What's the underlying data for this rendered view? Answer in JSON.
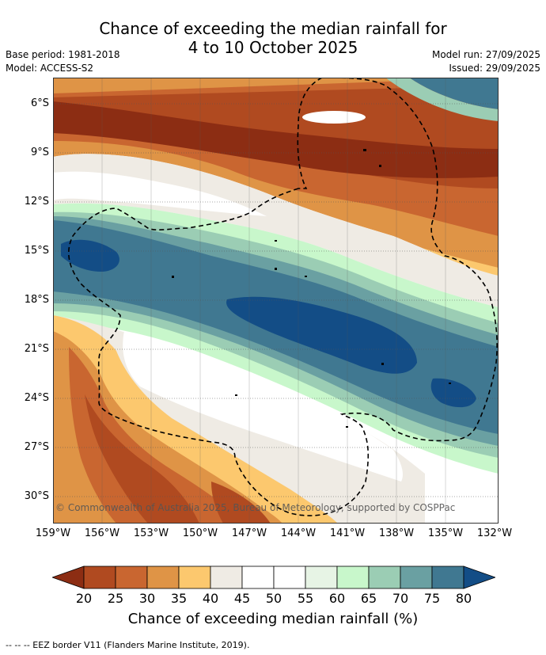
{
  "header": {
    "title_line1": "Chance of exceeding the median rainfall for",
    "title_line2": "4 to 10 October 2025",
    "base_period": "Base period: 1981-2018",
    "model": "Model: ACCESS-S2",
    "model_run": "Model run: 27/09/2025",
    "issued": "Issued: 29/09/2025"
  },
  "map": {
    "lat_labels": [
      "6°S",
      "9°S",
      "12°S",
      "15°S",
      "18°S",
      "21°S",
      "24°S",
      "27°S",
      "30°S"
    ],
    "lon_labels": [
      "159°W",
      "156°W",
      "153°W",
      "150°W",
      "147°W",
      "144°W",
      "141°W",
      "138°W",
      "135°W",
      "132°W"
    ],
    "copyright": "© Commonwealth of Australia 2025, Bureau of Meteorology, supported by COSPPac"
  },
  "colorbar": {
    "ticks": [
      "20",
      "25",
      "30",
      "35",
      "40",
      "45",
      "50",
      "55",
      "60",
      "65",
      "70",
      "75",
      "80"
    ],
    "colors": [
      "#8c2d13",
      "#b04a20",
      "#c96630",
      "#df9446",
      "#fcc86e",
      "#efebe4",
      "#ffffff",
      "#ffffff",
      "#e7f4e5",
      "#c8f7cb",
      "#9bcdb4",
      "#6aa0a2",
      "#407891",
      "#134d86"
    ],
    "title": "Chance of exceeding median rainfall (%)"
  },
  "footnote": "--  --  -- EEZ border V11 (Flanders Marine Institute, 2019)."
}
